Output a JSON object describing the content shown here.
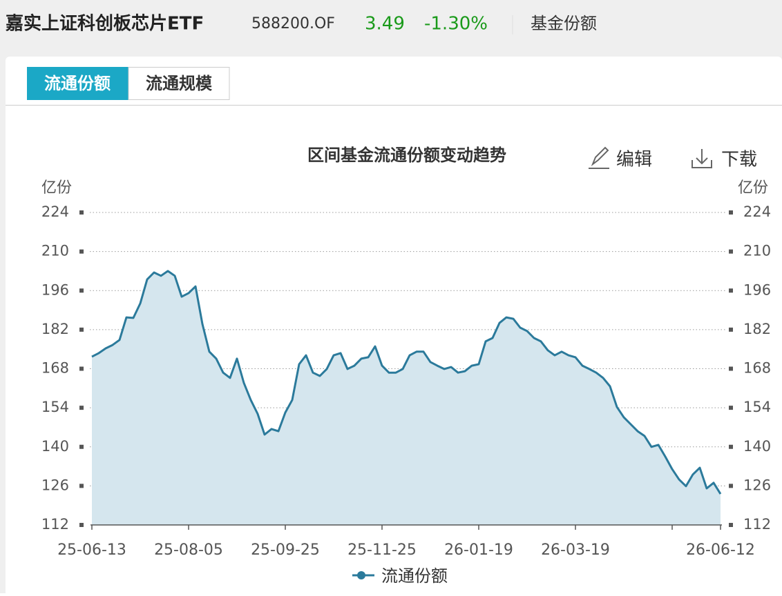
{
  "header": {
    "title": "嘉实上证科创板芯片ETF",
    "code": "588200.OF",
    "price": "3.49",
    "change": "-1.30%",
    "section": "基金份额"
  },
  "tabs": [
    "流通份额",
    "流通规模"
  ],
  "toolbar": {
    "edit": "编辑",
    "download": "下载"
  },
  "chart_data": {
    "type": "area",
    "title": "区间基金流通份额变动趋势",
    "y_axis_label": "亿份",
    "y2_axis_label": "亿份",
    "ylim": [
      112,
      224
    ],
    "yticks": [
      112,
      126,
      140,
      154,
      168,
      182,
      196,
      210,
      224
    ],
    "y2lim": [
      112,
      224
    ],
    "y2ticks": [
      112,
      126,
      140,
      154,
      168,
      182,
      196,
      210,
      224
    ],
    "grid": true,
    "categories": [
      "25-06-13",
      null,
      null,
      null,
      null,
      null,
      null,
      null,
      null,
      null,
      null,
      null,
      null,
      null,
      "25-08-05",
      null,
      null,
      null,
      null,
      null,
      null,
      null,
      null,
      null,
      null,
      null,
      null,
      null,
      "25-09-25",
      null,
      null,
      null,
      null,
      null,
      null,
      null,
      null,
      null,
      null,
      null,
      null,
      null,
      "25-11-25",
      null,
      null,
      null,
      null,
      null,
      null,
      null,
      null,
      null,
      null,
      null,
      null,
      null,
      "26-01-19",
      null,
      null,
      null,
      null,
      null,
      null,
      null,
      null,
      null,
      null,
      null,
      null,
      null,
      "26-03-19",
      null,
      null,
      null,
      null,
      null,
      null,
      null,
      null,
      null,
      null,
      null,
      null,
      null,
      null,
      null,
      null,
      null,
      null,
      null,
      null,
      "26-06-12"
    ],
    "series": [
      {
        "name": "流通份额",
        "color": "#2b7a9b",
        "fill": "#d5e6ee",
        "values": [
          172.3,
          173.6,
          175.3,
          176.5,
          178.3,
          186.4,
          186.2,
          191.4,
          200.0,
          202.5,
          201.3,
          203.0,
          201.3,
          193.8,
          195.1,
          197.5,
          184.0,
          174.1,
          171.6,
          166.6,
          164.7,
          171.6,
          162.9,
          156.8,
          151.8,
          144.4,
          146.4,
          145.6,
          152.3,
          156.8,
          169.6,
          172.8,
          166.6,
          165.4,
          167.9,
          172.8,
          173.6,
          167.9,
          169.1,
          171.6,
          172.1,
          176.0,
          169.1,
          166.6,
          166.6,
          167.9,
          172.8,
          174.1,
          174.1,
          170.4,
          169.1,
          167.9,
          168.6,
          166.6,
          167.1,
          169.1,
          169.6,
          177.8,
          179.0,
          184.4,
          186.4,
          185.9,
          182.7,
          181.5,
          179.0,
          177.8,
          174.6,
          172.8,
          174.1,
          172.8,
          172.1,
          169.1,
          167.9,
          166.6,
          164.7,
          161.7,
          154.3,
          150.6,
          148.1,
          145.6,
          143.9,
          140.0,
          140.7,
          136.5,
          132.0,
          128.3,
          125.9,
          130.1,
          132.5,
          125.1,
          127.1,
          123.1
        ]
      }
    ]
  }
}
